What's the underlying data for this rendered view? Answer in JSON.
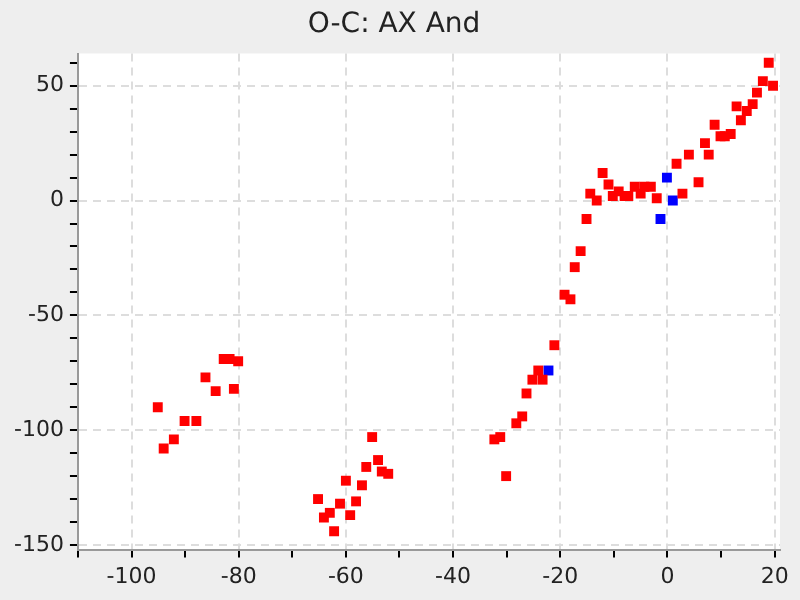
{
  "chart_data": {
    "type": "scatter",
    "title": "O-C: AX And",
    "marker": "square",
    "grid": true,
    "legend": false,
    "xlim": [
      -110,
      21
    ],
    "ylim": [
      -152,
      64
    ],
    "xticks": [
      {
        "value": -110,
        "label": null
      },
      -100,
      {
        "value": -90,
        "label": null
      },
      -80,
      {
        "value": -70,
        "label": null
      },
      -60,
      {
        "value": -50,
        "label": null
      },
      -40,
      {
        "value": -30,
        "label": null
      },
      -20,
      {
        "value": -10,
        "label": null
      },
      0,
      {
        "value": 10,
        "label": null
      },
      20
    ],
    "yticks": [
      -150,
      {
        "value": -140,
        "label": null
      },
      {
        "value": -130,
        "label": null
      },
      {
        "value": -120,
        "label": null
      },
      {
        "value": -110,
        "label": null
      },
      -100,
      {
        "value": -90,
        "label": null
      },
      {
        "value": -80,
        "label": null
      },
      {
        "value": -70,
        "label": null
      },
      {
        "value": -60,
        "label": null
      },
      -50,
      {
        "value": -40,
        "label": null
      },
      {
        "value": -30,
        "label": null
      },
      {
        "value": -20,
        "label": null
      },
      {
        "value": -10,
        "label": null
      },
      0,
      {
        "value": 10,
        "label": null
      },
      {
        "value": 20,
        "label": null
      },
      {
        "value": 30,
        "label": null
      },
      {
        "value": 40,
        "label": null
      },
      50,
      {
        "value": 60,
        "label": null
      }
    ],
    "series": [
      {
        "color": "#ff0000",
        "x": [
          -95.1,
          -94.0,
          -92.1,
          -90.1,
          -87.9,
          -86.2,
          -84.3,
          -82.8,
          -81.7,
          -80.9,
          -80.1,
          -65.2,
          -64.1,
          -63.0,
          -62.2,
          -61.1,
          -60.0,
          -59.2,
          -58.1,
          -57.0,
          -56.2,
          -55.1,
          -54.0,
          -53.3,
          -52.1,
          -32.3,
          -31.2,
          -30.1,
          -28.2,
          -27.1,
          -26.3,
          -25.2,
          -24.1,
          -23.3,
          -21.1,
          -19.2,
          -18.1,
          -17.3,
          -16.2,
          -15.1,
          -14.4,
          -13.2,
          -12.1,
          -11.0,
          -10.2,
          -9.1,
          -8.0,
          -7.3,
          -6.1,
          -5.0,
          -4.3,
          -3.1,
          -2.0,
          1.7,
          2.8,
          4.0,
          5.8,
          7.0,
          7.7,
          8.8,
          9.9,
          10.7,
          11.8,
          12.9,
          13.7,
          14.8,
          15.9,
          16.7,
          17.8,
          18.9,
          19.7
        ],
        "values": [
          -90,
          -108,
          -104,
          -96,
          -96,
          -77,
          -83,
          -69,
          -69,
          -82,
          -70,
          -130,
          -138,
          -136,
          -144,
          -132,
          -122,
          -137,
          -131,
          -124,
          -116,
          -103,
          -113,
          -118,
          -119,
          -104,
          -103,
          -120,
          -97,
          -94,
          -84,
          -78,
          -74,
          -78,
          -63,
          -41,
          -43,
          -29,
          -22,
          -8,
          3,
          0,
          12,
          7,
          2,
          4,
          2,
          2,
          6,
          3,
          6,
          6,
          1,
          16,
          3,
          20,
          8,
          25,
          20,
          33,
          28,
          28,
          29,
          41,
          35,
          39,
          42,
          47,
          52,
          60,
          50
        ]
      },
      {
        "color": "#0000ff",
        "x": [
          -22.2,
          -1.3,
          -0.1,
          1.0
        ],
        "values": [
          -74,
          -8,
          10,
          0
        ]
      }
    ]
  }
}
